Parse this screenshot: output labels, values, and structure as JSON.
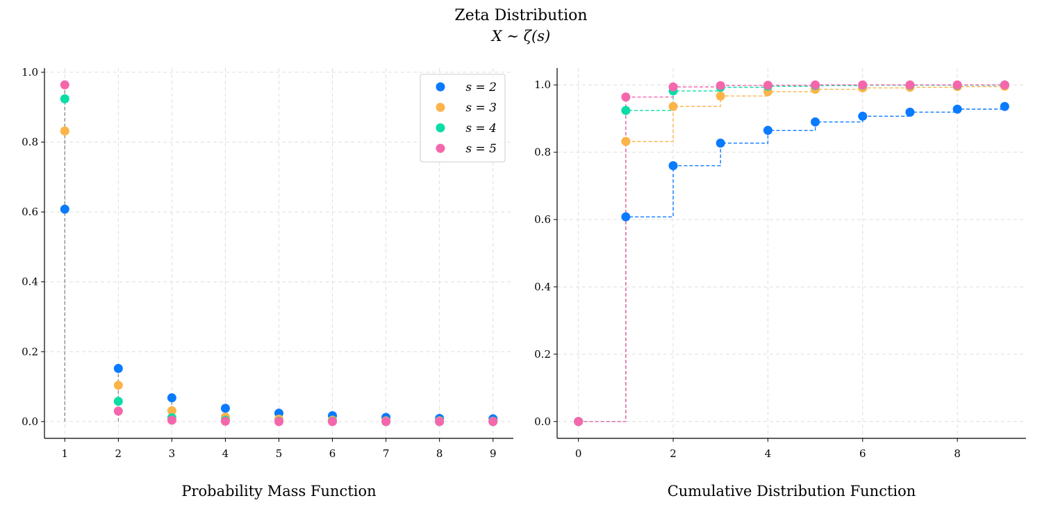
{
  "figure": {
    "title": "Zeta Distribution",
    "subtitle": "X ∼ ζ(s)"
  },
  "colors": {
    "s2": "#0a7aff",
    "s3": "#fbb44a",
    "s4": "#0adda5",
    "s5": "#f567ac"
  },
  "chart_data": [
    {
      "type": "scatter",
      "title": "Probability Mass Function",
      "xlabel": "Probability Mass Function",
      "ylabel": "",
      "xlim": [
        0.62,
        9.38
      ],
      "ylim": [
        -0.048,
        1.012
      ],
      "xticks": [
        1,
        2,
        3,
        4,
        5,
        6,
        7,
        8,
        9
      ],
      "yticks": [
        0.0,
        0.2,
        0.4,
        0.6,
        0.8,
        1.0
      ],
      "ytick_labels": [
        "0.0",
        "0.2",
        "0.4",
        "0.6",
        "0.8",
        "1.0"
      ],
      "grid": true,
      "legend_position": "top-right",
      "x": [
        1,
        2,
        3,
        4,
        5,
        6,
        7,
        8,
        9
      ],
      "series": [
        {
          "name": "s = 2",
          "key": "s2",
          "values": [
            0.608,
            0.152,
            0.068,
            0.038,
            0.024,
            0.017,
            0.012,
            0.009,
            0.008
          ]
        },
        {
          "name": "s = 3",
          "key": "s3",
          "values": [
            0.832,
            0.104,
            0.031,
            0.013,
            0.007,
            0.004,
            0.002,
            0.002,
            0.001
          ]
        },
        {
          "name": "s = 4",
          "key": "s4",
          "values": [
            0.924,
            0.058,
            0.011,
            0.004,
            0.001,
            0.001,
            0.0,
            0.0,
            0.0
          ]
        },
        {
          "name": "s = 5",
          "key": "s5",
          "values": [
            0.964,
            0.03,
            0.004,
            0.001,
            0.0,
            0.0,
            0.0,
            0.0,
            0.0
          ]
        }
      ]
    },
    {
      "type": "line",
      "title": "Cumulative Distribution Function",
      "xlabel": "Cumulative Distribution Function",
      "ylabel": "",
      "xlim": [
        -0.45,
        9.45
      ],
      "ylim": [
        -0.05,
        1.05
      ],
      "xticks": [
        0,
        2,
        4,
        6,
        8
      ],
      "yticks": [
        0.0,
        0.2,
        0.4,
        0.6,
        0.8,
        1.0
      ],
      "ytick_labels": [
        "0.0",
        "0.2",
        "0.4",
        "0.6",
        "0.8",
        "1.0"
      ],
      "grid": true,
      "step": "post",
      "x": [
        0,
        1,
        2,
        3,
        4,
        5,
        6,
        7,
        8,
        9
      ],
      "series": [
        {
          "name": "s = 2",
          "key": "s2",
          "values": [
            0.0,
            0.608,
            0.76,
            0.827,
            0.865,
            0.89,
            0.907,
            0.919,
            0.928,
            0.936
          ]
        },
        {
          "name": "s = 3",
          "key": "s3",
          "values": [
            0.0,
            0.832,
            0.936,
            0.967,
            0.98,
            0.987,
            0.991,
            0.993,
            0.995,
            0.996
          ]
        },
        {
          "name": "s = 4",
          "key": "s4",
          "values": [
            0.0,
            0.924,
            0.982,
            0.993,
            0.996,
            0.998,
            0.999,
            0.999,
            0.999,
            1.0
          ]
        },
        {
          "name": "s = 5",
          "key": "s5",
          "values": [
            0.0,
            0.964,
            0.994,
            0.998,
            0.999,
            1.0,
            1.0,
            1.0,
            1.0,
            1.0
          ]
        }
      ]
    }
  ]
}
